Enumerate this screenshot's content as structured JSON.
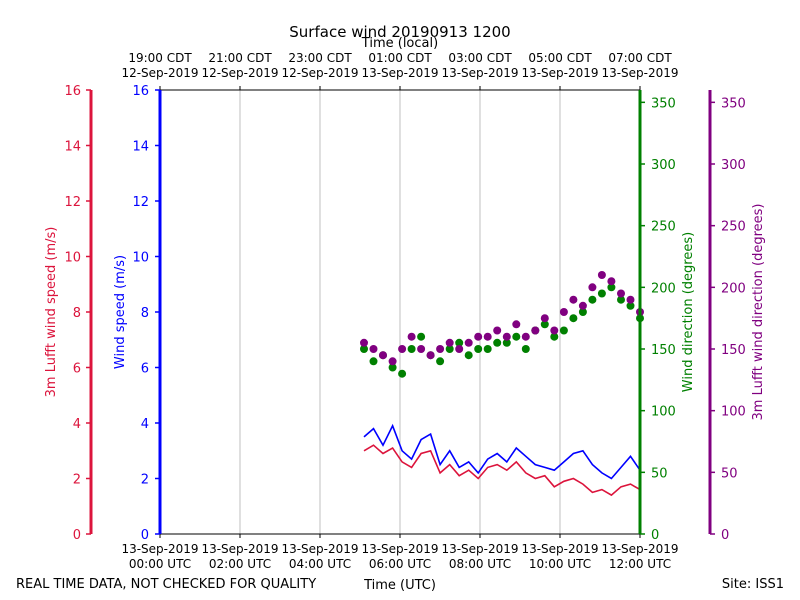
{
  "chart_data": {
    "type": "line-scatter",
    "title": "Surface wind 20190913 1200",
    "top_axis_label": "Time (local)",
    "xlabel": "Time (UTC)",
    "footer_left": "REAL TIME DATA, NOT CHECKED FOR QUALITY",
    "footer_right": "Site: ISS1",
    "x_range_hours": [
      0,
      12
    ],
    "x_bottom_ticks": [
      {
        "h": 0,
        "l1": "13-Sep-2019",
        "l2": "00:00 UTC"
      },
      {
        "h": 2,
        "l1": "13-Sep-2019",
        "l2": "02:00 UTC"
      },
      {
        "h": 4,
        "l1": "13-Sep-2019",
        "l2": "04:00 UTC"
      },
      {
        "h": 6,
        "l1": "13-Sep-2019",
        "l2": "06:00 UTC"
      },
      {
        "h": 8,
        "l1": "13-Sep-2019",
        "l2": "08:00 UTC"
      },
      {
        "h": 10,
        "l1": "13-Sep-2019",
        "l2": "10:00 UTC"
      },
      {
        "h": 12,
        "l1": "13-Sep-2019",
        "l2": "12:00 UTC"
      }
    ],
    "x_top_ticks": [
      {
        "h": 0,
        "l1": "19:00 CDT",
        "l2": "12-Sep-2019"
      },
      {
        "h": 2,
        "l1": "21:00 CDT",
        "l2": "12-Sep-2019"
      },
      {
        "h": 4,
        "l1": "23:00 CDT",
        "l2": "12-Sep-2019"
      },
      {
        "h": 6,
        "l1": "01:00 CDT",
        "l2": "13-Sep-2019"
      },
      {
        "h": 8,
        "l1": "03:00 CDT",
        "l2": "13-Sep-2019"
      },
      {
        "h": 10,
        "l1": "05:00 CDT",
        "l2": "13-Sep-2019"
      },
      {
        "h": 12,
        "l1": "07:00 CDT",
        "l2": "13-Sep-2019"
      }
    ],
    "axes": {
      "lufft_speed": {
        "label": "3m Lufft wind speed (m/s)",
        "color": "#dc143c",
        "range": [
          0,
          16
        ],
        "ticks": [
          0,
          2,
          4,
          6,
          8,
          10,
          12,
          14,
          16
        ]
      },
      "wind_speed": {
        "label": "Wind speed (m/s)",
        "color": "#0000ff",
        "range": [
          0,
          16
        ],
        "ticks": [
          0,
          2,
          4,
          6,
          8,
          10,
          12,
          14,
          16
        ]
      },
      "wind_dir": {
        "label": "Wind direction (degrees)",
        "color": "#008000",
        "range": [
          0,
          360
        ],
        "ticks": [
          0,
          50,
          100,
          150,
          200,
          250,
          300,
          350
        ]
      },
      "lufft_dir": {
        "label": "3m Lufft wind direction (degrees)",
        "color": "#800080",
        "range": [
          0,
          360
        ],
        "ticks": [
          0,
          50,
          100,
          150,
          200,
          250,
          300,
          350
        ]
      }
    },
    "series": [
      {
        "name": "Wind speed (m/s)",
        "style": "line",
        "color": "#0000ff",
        "axis": "wind_speed",
        "hour_step": 0.25,
        "hours": [
          5.1,
          12.0
        ],
        "values": [
          3.5,
          3.8,
          3.2,
          3.9,
          3.0,
          2.7,
          3.4,
          3.6,
          2.5,
          3.0,
          2.4,
          2.6,
          2.2,
          2.7,
          2.9,
          2.6,
          3.1,
          2.8,
          2.5,
          2.4,
          2.3,
          2.6,
          2.9,
          3.0,
          2.5,
          2.2,
          2.0,
          2.4,
          2.8,
          2.3
        ]
      },
      {
        "name": "3m Lufft wind speed (m/s)",
        "style": "line",
        "color": "#dc143c",
        "axis": "lufft_speed",
        "hour_step": 0.25,
        "hours": [
          5.1,
          12.0
        ],
        "values": [
          3.0,
          3.2,
          2.9,
          3.1,
          2.6,
          2.4,
          2.9,
          3.0,
          2.2,
          2.5,
          2.1,
          2.3,
          2.0,
          2.4,
          2.5,
          2.3,
          2.6,
          2.2,
          2.0,
          2.1,
          1.7,
          1.9,
          2.0,
          1.8,
          1.5,
          1.6,
          1.4,
          1.7,
          1.8,
          1.6
        ]
      },
      {
        "name": "Wind direction (degrees)",
        "style": "scatter",
        "color": "#008000",
        "axis": "wind_dir",
        "hours": [
          5.1,
          12.0
        ],
        "values": [
          150,
          140,
          145,
          135,
          130,
          150,
          160,
          145,
          140,
          150,
          155,
          145,
          150,
          150,
          155,
          155,
          160,
          150,
          165,
          170,
          160,
          165,
          175,
          180,
          190,
          195,
          200,
          190,
          185,
          175
        ]
      },
      {
        "name": "3m Lufft wind direction (degrees)",
        "style": "scatter",
        "color": "#800080",
        "axis": "lufft_dir",
        "hours": [
          5.1,
          12.0
        ],
        "values": [
          155,
          150,
          145,
          140,
          150,
          160,
          150,
          145,
          150,
          155,
          150,
          155,
          160,
          160,
          165,
          160,
          170,
          160,
          165,
          175,
          165,
          180,
          190,
          185,
          200,
          210,
          205,
          195,
          190,
          180
        ]
      }
    ]
  }
}
